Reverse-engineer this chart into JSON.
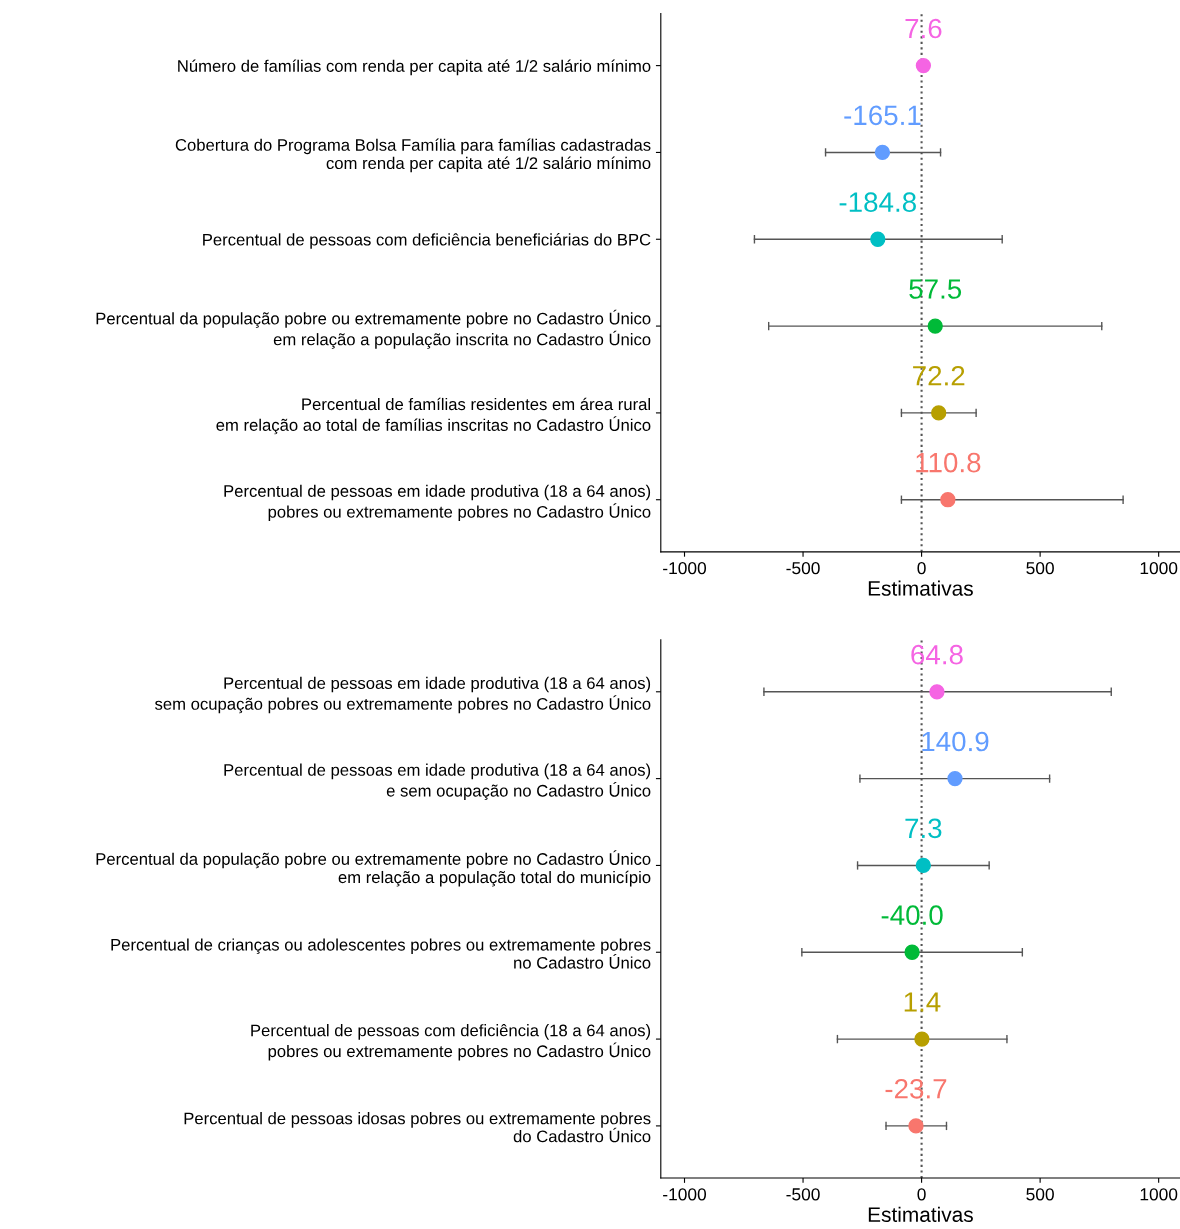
{
  "chart_data": [
    {
      "type": "scatter",
      "orientation": "horizontal",
      "xlabel": "Estimativas",
      "categories": [
        "Número de famílias com renda per capita até 1/2 salário mínimo",
        "Cobertura do Programa Bolsa Família para famílias cadastradas\ncom renda per capita até 1/2 salário mínimo",
        "Percentual de pessoas com deficiência beneficiárias do BPC",
        "Percentual da população pobre ou extremamente pobre no Cadastro Único\nem relação a população inscrita no Cadastro Único",
        "Percentual de famílias residentes em área rural\nem relação ao total de famílias inscritas no Cadastro Único",
        "Percentual de pessoas em idade produtiva (18 a 64 anos)\npobres ou extremamente pobres no Cadastro Único"
      ],
      "values": [
        7.6,
        -165.1,
        -184.8,
        57.5,
        72.2,
        110.8
      ],
      "value_labels": [
        "7.6",
        "-165.1",
        "-184.8",
        "57.5",
        "72.2",
        "110.8"
      ],
      "errors": [
        null,
        [
          -405,
          80
        ],
        [
          -705,
          340
        ],
        [
          -645,
          760
        ],
        [
          -85,
          230
        ],
        [
          -85,
          850
        ]
      ],
      "colors": [
        "#f564e3",
        "#619cff",
        "#00bfc4",
        "#00ba38",
        "#b79f00",
        "#f8766d"
      ],
      "xlim": [
        -1100,
        1090
      ],
      "xticks": [
        -1000,
        -500,
        0,
        500,
        1000
      ],
      "ref_lines": [
        {
          "axis": "x",
          "value": 0,
          "line_style": "dotted",
          "color": "#555555"
        }
      ],
      "grid": false,
      "marker": "circle"
    },
    {
      "type": "scatter",
      "orientation": "horizontal",
      "xlabel": "Estimativas",
      "categories": [
        "Percentual de pessoas em idade produtiva (18 a 64 anos)\nsem ocupação pobres ou extremamente pobres no Cadastro Único",
        "Percentual de pessoas em idade produtiva (18 a 64 anos)\ne sem ocupação no Cadastro Único",
        "Percentual da população pobre ou extremamente pobre no Cadastro Único\nem relação a população total do município",
        "Percentual de crianças ou adolescentes pobres ou extremamente pobres\nno Cadastro Único",
        "Percentual de pessoas com deficiência (18 a 64 anos)\npobres ou extremamente pobres no Cadastro Único",
        "Percentual de pessoas idosas pobres ou extremamente pobres\ndo Cadastro Único"
      ],
      "values": [
        64.8,
        140.9,
        7.3,
        -40.0,
        1.4,
        -23.7
      ],
      "value_labels": [
        "64.8",
        "140.9",
        "7.3",
        "-40.0",
        "1.4",
        "-23.7"
      ],
      "errors": [
        [
          -665,
          800
        ],
        [
          -260,
          540
        ],
        [
          -270,
          285
        ],
        [
          -505,
          425
        ],
        [
          -355,
          360
        ],
        [
          -150,
          105
        ]
      ],
      "colors": [
        "#f564e3",
        "#619cff",
        "#00bfc4",
        "#00ba38",
        "#b79f00",
        "#f8766d"
      ],
      "xlim": [
        -1100,
        1090
      ],
      "xticks": [
        -1000,
        -500,
        0,
        500,
        1000
      ],
      "ref_lines": [
        {
          "axis": "x",
          "value": 0,
          "line_style": "dotted",
          "color": "#555555"
        }
      ],
      "grid": false,
      "marker": "circle"
    }
  ]
}
